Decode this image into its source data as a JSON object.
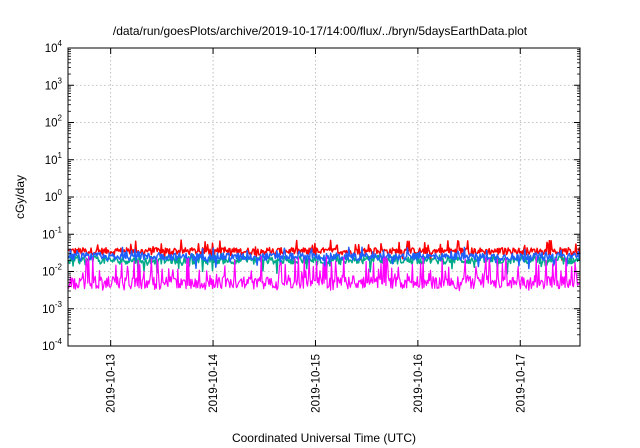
{
  "chart_data": {
    "type": "line",
    "title": "/data/run/goesPlots/archive/2019-10-17/14:00/flux/../bryn/5daysEarthData.plot",
    "xlabel": "Coordinated Universal Time (UTC)",
    "ylabel": "cGy/day",
    "yscale": "log",
    "ylim": [
      0.0001,
      10000
    ],
    "y_ticks": [
      {
        "base": "10",
        "exp": "-4",
        "value": 0.0001
      },
      {
        "base": "10",
        "exp": "-3",
        "value": 0.001
      },
      {
        "base": "10",
        "exp": "-2",
        "value": 0.01
      },
      {
        "base": "10",
        "exp": "-1",
        "value": 0.1
      },
      {
        "base": "10",
        "exp": "0",
        "value": 1
      },
      {
        "base": "10",
        "exp": "1",
        "value": 10
      },
      {
        "base": "10",
        "exp": "2",
        "value": 100
      },
      {
        "base": "10",
        "exp": "3",
        "value": 1000
      },
      {
        "base": "10",
        "exp": "4",
        "value": 10000
      }
    ],
    "xlim": [
      "2019-10-12 14:00",
      "2019-10-17 14:00"
    ],
    "x_ticks": [
      "2019-10-13",
      "2019-10-14",
      "2019-10-15",
      "2019-10-16",
      "2019-10-17"
    ],
    "grid": true,
    "series": [
      {
        "color": "#ff0000",
        "typical": 0.035,
        "range": [
          0.02,
          0.07
        ]
      },
      {
        "color": "#00aa88",
        "typical": 0.02,
        "range": [
          0.008,
          0.03
        ]
      },
      {
        "color": "#1e5fff",
        "typical": 0.025,
        "range": [
          0.012,
          0.045
        ]
      },
      {
        "color": "#ff00ff",
        "typical": 0.005,
        "range": [
          0.003,
          0.025
        ]
      }
    ]
  }
}
